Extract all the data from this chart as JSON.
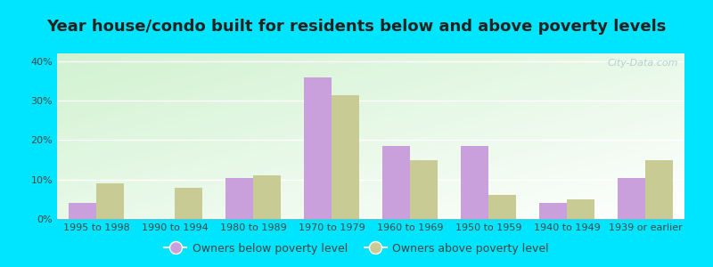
{
  "title": "Year house/condo built for residents below and above poverty levels",
  "categories": [
    "1995 to 1998",
    "1990 to 1994",
    "1980 to 1989",
    "1970 to 1979",
    "1960 to 1969",
    "1950 to 1959",
    "1940 to 1949",
    "1939 or earlier"
  ],
  "below_poverty": [
    4.0,
    0.0,
    10.5,
    36.0,
    18.5,
    18.5,
    4.0,
    10.5
  ],
  "above_poverty": [
    9.0,
    8.0,
    11.0,
    31.5,
    15.0,
    6.0,
    5.0,
    15.0
  ],
  "below_color": "#c9a0dc",
  "above_color": "#c8cc94",
  "ylim": [
    0,
    42
  ],
  "yticks": [
    0,
    10,
    20,
    30,
    40
  ],
  "outer_background": "#00e5ff",
  "legend_labels": [
    "Owners below poverty level",
    "Owners above poverty level"
  ],
  "title_fontsize": 13,
  "tick_fontsize": 8,
  "legend_fontsize": 9,
  "bar_width": 0.35,
  "watermark": "City-Data.com"
}
